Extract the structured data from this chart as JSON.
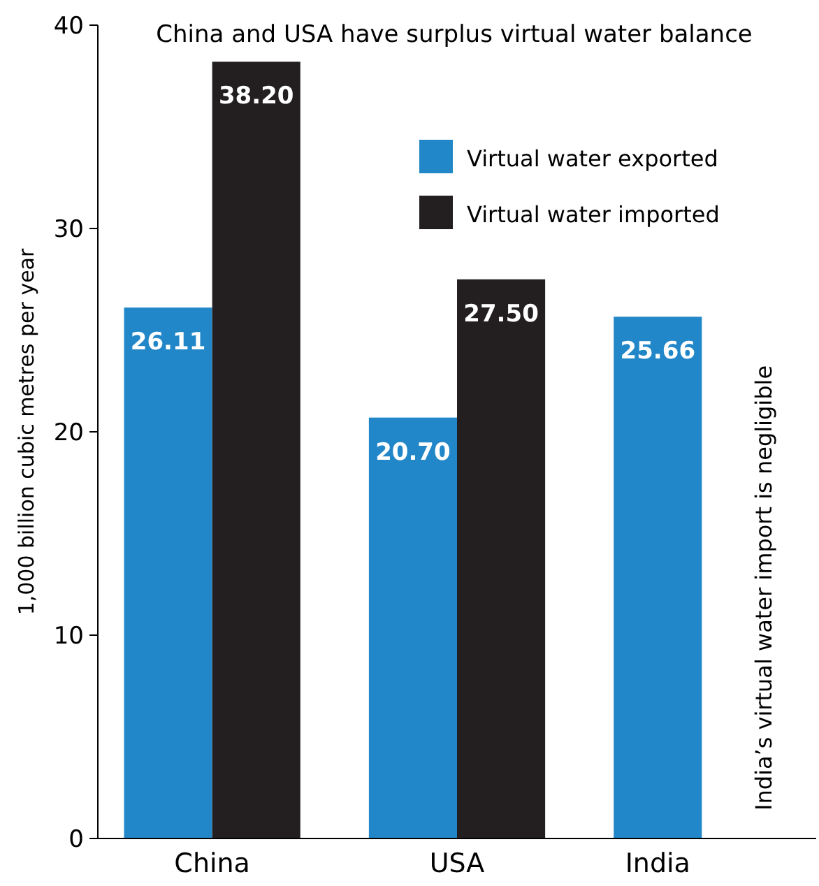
{
  "chart_data": {
    "type": "bar",
    "title": "China and USA have surplus virtual water balance",
    "ylabel": "1,000 billion cubic metres per year",
    "categories": [
      "China",
      "USA",
      "India"
    ],
    "series": [
      {
        "name": "Virtual water exported",
        "color": "#2287c8",
        "values": [
          26.11,
          20.7,
          25.66
        ]
      },
      {
        "name": "Virtual water imported",
        "color": "#231f20",
        "values": [
          38.2,
          27.5,
          null
        ]
      }
    ],
    "value_labels": [
      [
        "26.11",
        "20.70",
        "25.66"
      ],
      [
        "38.20",
        "27.50",
        null
      ]
    ],
    "ylim": [
      0,
      40
    ],
    "yticks": [
      0,
      10,
      20,
      30,
      40
    ],
    "grid": false,
    "legend": "top right",
    "annotations": [
      "India’s virtual water import is negligible"
    ]
  }
}
